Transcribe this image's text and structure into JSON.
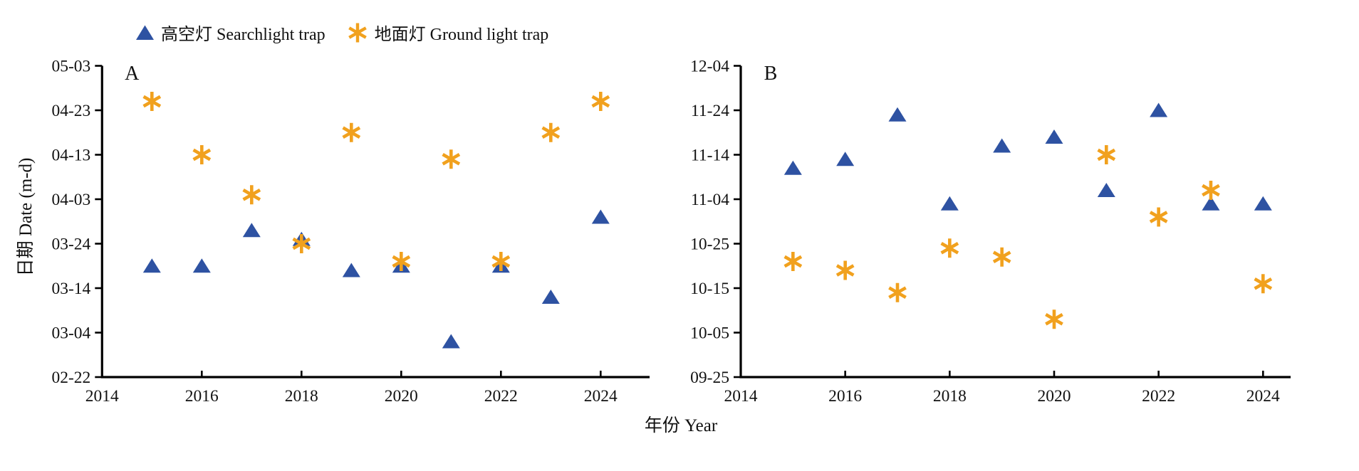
{
  "legend": {
    "items": [
      {
        "label": "高空灯 Searchlight trap",
        "marker": "triangle-icon"
      },
      {
        "label": "地面灯 Ground light trap",
        "marker": "asterisk-icon"
      }
    ]
  },
  "axes": {
    "y_title": "日期 Date (m-d)",
    "x_title": "年份 Year"
  },
  "colors": {
    "searchlight": "#2e52a2",
    "ground": "#f1a11e",
    "axis": "#000000",
    "text": "#111111"
  },
  "chart_data": [
    {
      "panel": "A",
      "type": "scatter",
      "xlabel": "年份 Year",
      "ylabel": "日期 Date (m-d)",
      "x_ticks": [
        2014,
        2016,
        2018,
        2020,
        2022,
        2024
      ],
      "x_range": [
        2014,
        2025
      ],
      "y_ticks_top_to_bottom": [
        "05-03",
        "04-23",
        "04-13",
        "04-03",
        "03-24",
        "03-14",
        "03-04",
        "02-22"
      ],
      "years": [
        2015,
        2016,
        2017,
        2018,
        2019,
        2020,
        2021,
        2022,
        2023,
        2024
      ],
      "series": [
        {
          "name": "高空灯 Searchlight trap",
          "marker": "triangle",
          "color_key": "searchlight",
          "dates": [
            "03-19",
            "03-19",
            "03-27",
            "03-25",
            "03-18",
            "03-19",
            "03-02",
            "03-19",
            "03-12",
            "03-30"
          ]
        },
        {
          "name": "地面灯 Ground light trap",
          "marker": "asterisk",
          "color_key": "ground",
          "dates": [
            "04-25",
            "04-13",
            "04-04",
            "03-24",
            "04-18",
            "03-20",
            "04-12",
            "03-20",
            "04-18",
            "04-25"
          ]
        }
      ]
    },
    {
      "panel": "B",
      "type": "scatter",
      "xlabel": "年份 Year",
      "ylabel": "日期 Date (m-d)",
      "x_ticks": [
        2014,
        2016,
        2018,
        2020,
        2022,
        2024
      ],
      "x_range": [
        2014,
        2025
      ],
      "y_ticks_top_to_bottom": [
        "12-04",
        "11-24",
        "11-14",
        "11-04",
        "10-25",
        "10-15",
        "10-05",
        "09-25"
      ],
      "years": [
        2015,
        2016,
        2017,
        2018,
        2019,
        2020,
        2021,
        2022,
        2023,
        2024
      ],
      "series": [
        {
          "name": "高空灯 Searchlight trap",
          "marker": "triangle",
          "color_key": "searchlight",
          "dates": [
            "11-11",
            "11-13",
            "11-23",
            "11-03",
            "11-16",
            "11-18",
            "11-06",
            "11-24",
            "11-03",
            "11-03"
          ]
        },
        {
          "name": "地面灯 Ground light trap",
          "marker": "asterisk",
          "color_key": "ground",
          "dates": [
            "10-21",
            "10-19",
            "10-14",
            "10-24",
            "10-22",
            "10-08",
            "11-14",
            "10-31",
            "11-06",
            "10-16"
          ]
        }
      ]
    }
  ]
}
